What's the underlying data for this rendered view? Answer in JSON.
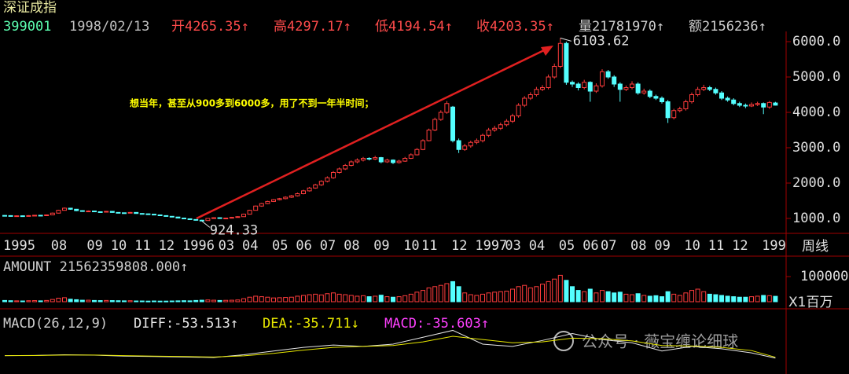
{
  "chart_data": {
    "type": "candlestick",
    "title": "深证成指",
    "header": [
      "399001",
      "1998/02/13",
      "开4265.35↑",
      "高4297.17↑",
      "低4194.54↑",
      "收4203.35↑",
      "量21781970↑",
      "额2156236↑"
    ],
    "annotation": "想当年，甚至从900多到6000多，用了不到一年半时间；",
    "high_label": "6103.62",
    "low_label": "924.33",
    "period_label": "周线",
    "watermark": "公众号 · 薇宝缠论细球",
    "ylim": [
      600,
      6289
    ],
    "yticks": [
      {
        "value": 1000,
        "label": "1000.0"
      },
      {
        "value": 2000,
        "label": "2000.0"
      },
      {
        "value": 3000,
        "label": "3000.0"
      },
      {
        "value": 4000,
        "label": "4000.0"
      },
      {
        "value": 5000,
        "label": "5000.0"
      },
      {
        "value": 6000,
        "label": "6000.0"
      }
    ],
    "up_color": "#ff3c3c",
    "down_color": "#54ffff",
    "categories": [
      "1995",
      null,
      null,
      null,
      null,
      null,
      null,
      null,
      "08",
      null,
      null,
      null,
      null,
      null,
      "09",
      null,
      null,
      null,
      "10",
      null,
      null,
      null,
      "11",
      null,
      null,
      null,
      "12",
      null,
      null,
      null,
      "1996",
      null,
      null,
      null,
      null,
      null,
      "03",
      null,
      null,
      null,
      "04",
      null,
      null,
      null,
      null,
      "05",
      null,
      null,
      null,
      "06",
      null,
      null,
      null,
      "07",
      null,
      null,
      null,
      "08",
      null,
      null,
      null,
      null,
      "09",
      null,
      null,
      null,
      null,
      "10",
      null,
      null,
      "11",
      null,
      null,
      null,
      null,
      "12",
      null,
      null,
      null,
      "1997",
      null,
      null,
      null,
      null,
      "03",
      null,
      null,
      null,
      "04",
      null,
      null,
      null,
      null,
      "05",
      null,
      null,
      null,
      "06",
      null,
      null,
      "07",
      null,
      null,
      null,
      null,
      "08",
      null,
      null,
      null,
      "09",
      null,
      null,
      null,
      null,
      "10",
      null,
      null,
      null,
      "11",
      null,
      null,
      null,
      "12",
      null,
      null,
      null,
      null,
      "199",
      null,
      null
    ],
    "candles": [
      [
        1085,
        1095,
        1070,
        1080
      ],
      [
        1080,
        1090,
        1060,
        1070
      ],
      [
        1070,
        1085,
        1062,
        1075
      ],
      [
        1075,
        1082,
        1055,
        1065
      ],
      [
        1065,
        1092,
        1060,
        1080
      ],
      [
        1080,
        1100,
        1072,
        1090
      ],
      [
        1090,
        1098,
        1075,
        1085
      ],
      [
        1085,
        1112,
        1080,
        1100
      ],
      [
        1100,
        1165,
        1095,
        1150
      ],
      [
        1150,
        1245,
        1140,
        1230
      ],
      [
        1230,
        1310,
        1220,
        1290
      ],
      [
        1290,
        1300,
        1245,
        1260
      ],
      [
        1260,
        1268,
        1205,
        1220
      ],
      [
        1220,
        1230,
        1188,
        1200
      ],
      [
        1200,
        1225,
        1192,
        1210
      ],
      [
        1210,
        1215,
        1178,
        1190
      ],
      [
        1190,
        1198,
        1170,
        1180
      ],
      [
        1180,
        1212,
        1175,
        1200
      ],
      [
        1200,
        1205,
        1160,
        1170
      ],
      [
        1170,
        1178,
        1150,
        1160
      ],
      [
        1160,
        1165,
        1140,
        1150
      ],
      [
        1150,
        1182,
        1145,
        1170
      ],
      [
        1170,
        1175,
        1132,
        1140
      ],
      [
        1140,
        1148,
        1122,
        1130
      ],
      [
        1130,
        1136,
        1110,
        1120
      ],
      [
        1120,
        1125,
        1092,
        1100
      ],
      [
        1100,
        1106,
        1072,
        1080
      ],
      [
        1080,
        1086,
        1052,
        1060
      ],
      [
        1060,
        1066,
        1032,
        1040
      ],
      [
        1040,
        1046,
        1002,
        1010
      ],
      [
        1010,
        1016,
        982,
        990
      ],
      [
        990,
        996,
        962,
        970
      ],
      [
        970,
        976,
        935,
        950
      ],
      [
        950,
        962,
        924.33,
        940
      ],
      [
        940,
        1012,
        936,
        1000
      ],
      [
        1000,
        1032,
        995,
        1020
      ],
      [
        1020,
        1028,
        992,
        1000
      ],
      [
        1000,
        1018,
        994,
        1010
      ],
      [
        1010,
        1040,
        1004,
        1030
      ],
      [
        1030,
        1062,
        1024,
        1050
      ],
      [
        1050,
        1135,
        1045,
        1120
      ],
      [
        1120,
        1245,
        1115,
        1230
      ],
      [
        1230,
        1365,
        1222,
        1350
      ],
      [
        1350,
        1440,
        1330,
        1420
      ],
      [
        1420,
        1500,
        1405,
        1480
      ],
      [
        1480,
        1550,
        1465,
        1530
      ],
      [
        1530,
        1580,
        1510,
        1560
      ],
      [
        1560,
        1625,
        1540,
        1600
      ],
      [
        1600,
        1665,
        1580,
        1640
      ],
      [
        1640,
        1730,
        1620,
        1700
      ],
      [
        1700,
        1810,
        1680,
        1780
      ],
      [
        1780,
        1890,
        1760,
        1860
      ],
      [
        1860,
        1980,
        1840,
        1950
      ],
      [
        1950,
        2080,
        1920,
        2050
      ],
      [
        2050,
        2190,
        2020,
        2150
      ],
      [
        2150,
        2340,
        2120,
        2300
      ],
      [
        2300,
        2440,
        2270,
        2400
      ],
      [
        2400,
        2540,
        2370,
        2500
      ],
      [
        2500,
        2640,
        2470,
        2600
      ],
      [
        2600,
        2700,
        2560,
        2650
      ],
      [
        2650,
        2740,
        2610,
        2700
      ],
      [
        2700,
        2730,
        2640,
        2680
      ],
      [
        2680,
        2770,
        2650,
        2720
      ],
      [
        2720,
        2740,
        2560,
        2600
      ],
      [
        2600,
        2690,
        2570,
        2650
      ],
      [
        2650,
        2670,
        2540,
        2580
      ],
      [
        2580,
        2660,
        2550,
        2620
      ],
      [
        2620,
        2740,
        2600,
        2700
      ],
      [
        2700,
        2840,
        2680,
        2800
      ],
      [
        2800,
        2990,
        2780,
        2950
      ],
      [
        2950,
        3240,
        2930,
        3200
      ],
      [
        3200,
        3540,
        3180,
        3500
      ],
      [
        3500,
        3850,
        3470,
        3800
      ],
      [
        3800,
        4060,
        3760,
        4000
      ],
      [
        4000,
        4320,
        3960,
        4250
      ],
      [
        4150,
        4180,
        3150,
        3200
      ],
      [
        3200,
        3260,
        2850,
        2950
      ],
      [
        2950,
        3110,
        2910,
        3050
      ],
      [
        3050,
        3200,
        3000,
        3150
      ],
      [
        3150,
        3260,
        3100,
        3200
      ],
      [
        3200,
        3400,
        3150,
        3350
      ],
      [
        3350,
        3560,
        3300,
        3500
      ],
      [
        3500,
        3620,
        3450,
        3550
      ],
      [
        3550,
        3710,
        3500,
        3650
      ],
      [
        3650,
        3810,
        3600,
        3750
      ],
      [
        3750,
        3960,
        3700,
        3900
      ],
      [
        3900,
        4260,
        3850,
        4200
      ],
      [
        4200,
        4460,
        4150,
        4400
      ],
      [
        4400,
        4570,
        4350,
        4500
      ],
      [
        4500,
        4720,
        4450,
        4650
      ],
      [
        4650,
        4770,
        4600,
        4700
      ],
      [
        4700,
        5070,
        4650,
        5000
      ],
      [
        5000,
        5380,
        4950,
        5300
      ],
      [
        5300,
        6103.62,
        5250,
        5950
      ],
      [
        5950,
        6000,
        4780,
        4850
      ],
      [
        4850,
        4900,
        4720,
        4800
      ],
      [
        4800,
        4850,
        4620,
        4700
      ],
      [
        4700,
        4920,
        4650,
        4850
      ],
      [
        4850,
        4880,
        4300,
        4600
      ],
      [
        4600,
        4820,
        4550,
        4750
      ],
      [
        4750,
        5220,
        4700,
        5150
      ],
      [
        5150,
        5200,
        4950,
        5000
      ],
      [
        5000,
        5050,
        4720,
        4800
      ],
      [
        4800,
        4850,
        4300,
        4650
      ],
      [
        4650,
        4760,
        4600,
        4700
      ],
      [
        4700,
        4880,
        4650,
        4800
      ],
      [
        4800,
        4850,
        4500,
        4550
      ],
      [
        4550,
        4670,
        4500,
        4600
      ],
      [
        4600,
        4650,
        4400,
        4450
      ],
      [
        4450,
        4500,
        4350,
        4400
      ],
      [
        4400,
        4450,
        4250,
        4300
      ],
      [
        4300,
        4350,
        3700,
        3850
      ],
      [
        3850,
        4100,
        3800,
        4050
      ],
      [
        4050,
        4160,
        4000,
        4100
      ],
      [
        4100,
        4360,
        4050,
        4300
      ],
      [
        4300,
        4560,
        4250,
        4500
      ],
      [
        4500,
        4720,
        4450,
        4650
      ],
      [
        4650,
        4780,
        4600,
        4700
      ],
      [
        4700,
        4750,
        4600,
        4650
      ],
      [
        4650,
        4700,
        4500,
        4550
      ],
      [
        4550,
        4600,
        4350,
        4400
      ],
      [
        4400,
        4450,
        4300,
        4350
      ],
      [
        4350,
        4400,
        4200,
        4250
      ],
      [
        4250,
        4300,
        4150,
        4200
      ],
      [
        4200,
        4250,
        4120,
        4180
      ],
      [
        4180,
        4280,
        4150,
        4220
      ],
      [
        4220,
        4300,
        4180,
        4250
      ],
      [
        4250,
        4280,
        3950,
        4150
      ],
      [
        4150,
        4320,
        4100,
        4280
      ],
      [
        4265.35,
        4297.17,
        4194.54,
        4203.35
      ]
    ],
    "volume": {
      "title": "AMOUNT 21562359808.000↑",
      "unit_label": "X1百万",
      "ylim": [
        0,
        175000
      ],
      "yticks": [
        100000
      ],
      "values": [
        5000,
        4000,
        3500,
        3000,
        4000,
        4500,
        3500,
        5000,
        9000,
        14000,
        16000,
        10000,
        8000,
        6000,
        6000,
        5000,
        4500,
        5000,
        4500,
        4000,
        3500,
        4000,
        3000,
        3000,
        2500,
        3000,
        2500,
        2500,
        3000,
        3500,
        4000,
        3500,
        5000,
        6000,
        7000,
        6000,
        5000,
        5500,
        6000,
        7000,
        12000,
        18000,
        22000,
        20000,
        18000,
        15000,
        16000,
        17000,
        18000,
        22000,
        25000,
        28000,
        30000,
        27000,
        32000,
        35000,
        30000,
        28000,
        25000,
        22000,
        24000,
        20000,
        22000,
        26000,
        20000,
        18000,
        20000,
        24000,
        30000,
        38000,
        45000,
        55000,
        60000,
        65000,
        72000,
        80000,
        60000,
        35000,
        28000,
        25000,
        30000,
        35000,
        38000,
        40000,
        42000,
        50000,
        60000,
        65000,
        55000,
        60000,
        70000,
        80000,
        90000,
        105000,
        85000,
        60000,
        45000,
        40000,
        50000,
        35000,
        45000,
        40000,
        35000,
        38000,
        30000,
        28000,
        32000,
        25000,
        22000,
        24000,
        20000,
        40000,
        30000,
        25000,
        35000,
        45000,
        50000,
        40000,
        30000,
        28000,
        25000,
        22000,
        20000,
        18000,
        18000,
        20000,
        22000,
        25000,
        24000,
        21562
      ]
    },
    "macd": {
      "title": "MACD(26,12,9)",
      "ylim": [
        -400,
        900
      ],
      "x": [
        0,
        5,
        10,
        15,
        20,
        25,
        30,
        35,
        40,
        45,
        50,
        55,
        60,
        65,
        70,
        75,
        80,
        85,
        90,
        95,
        100,
        105,
        110,
        115,
        120,
        125,
        129
      ],
      "series": [
        {
          "name": "DIFF:-53.513↑",
          "color": "#e8e8e8",
          "values": [
            0,
            5,
            20,
            10,
            -10,
            -20,
            -30,
            -40,
            20,
            100,
            180,
            230,
            200,
            250,
            400,
            550,
            250,
            200,
            330,
            480,
            350,
            280,
            100,
            200,
            150,
            60,
            -53.513
          ]
        },
        {
          "name": "DEA:-35.711↓",
          "color": "#e8e800",
          "values": [
            0,
            3,
            12,
            12,
            0,
            -10,
            -20,
            -30,
            -5,
            50,
            120,
            180,
            200,
            220,
            300,
            420,
            350,
            280,
            300,
            380,
            370,
            320,
            220,
            210,
            180,
            110,
            -35.711
          ]
        }
      ],
      "macd_label": "MACD:-35.603↑"
    }
  }
}
